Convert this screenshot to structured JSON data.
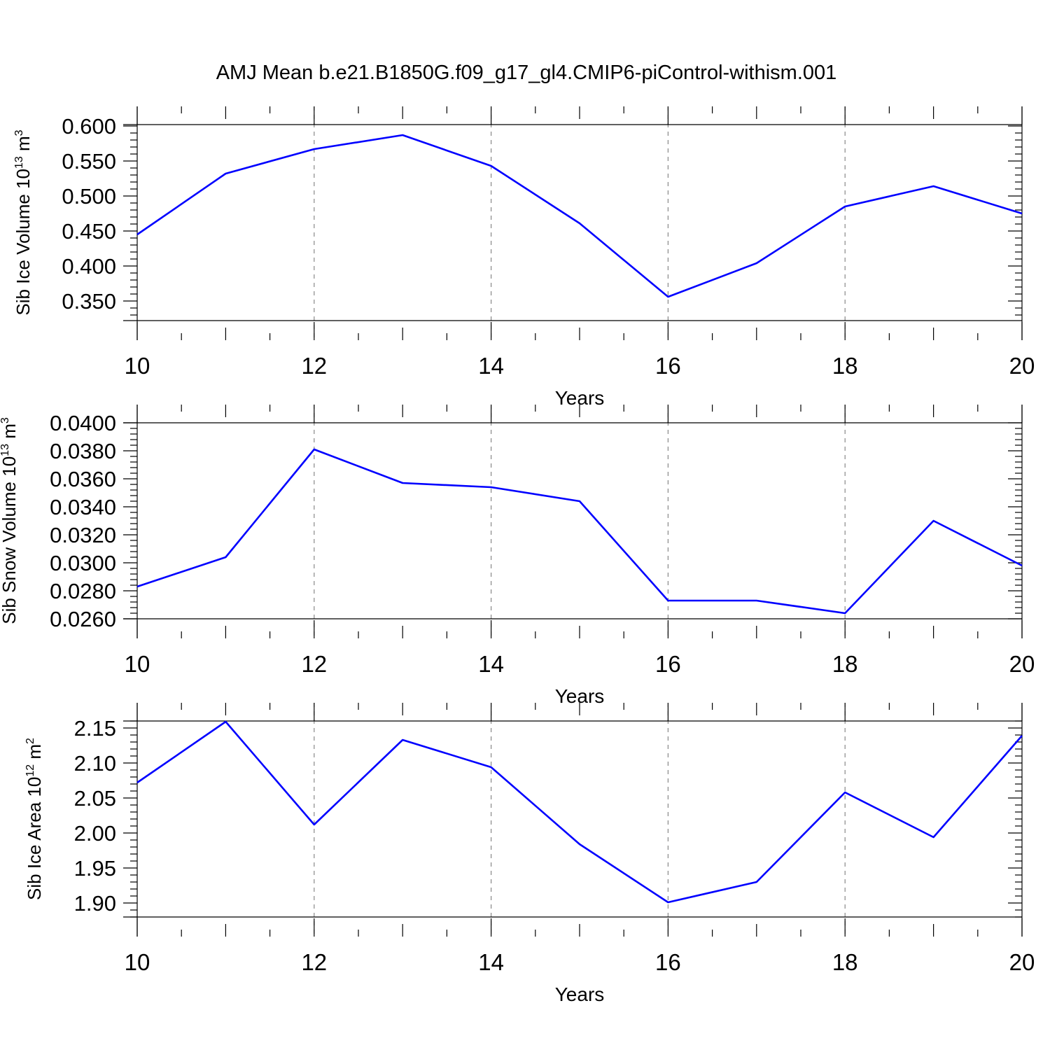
{
  "figure_title": "AMJ Mean b.e21.B1850G.f09_g17_gl4.CMIP6-piControl-withism.001",
  "colors": {
    "line": "#0000ff",
    "axis": "#000000",
    "grid": "#888888"
  },
  "chart_data": [
    {
      "type": "line",
      "title": "",
      "ylabel": "Sib Ice Volume 10",
      "ylabel_exp": "13",
      "ylabel_unit": " m",
      "ylabel_unit_exp": "3",
      "xlabel": "Years",
      "xlim": [
        10,
        20
      ],
      "ylim": [
        0.322,
        0.602
      ],
      "xticks": [
        10,
        12,
        14,
        16,
        18,
        20
      ],
      "xtick_labels": [
        "10",
        "12",
        "14",
        "16",
        "18",
        "20"
      ],
      "yticks": [
        0.35,
        0.4,
        0.45,
        0.5,
        0.55,
        0.6
      ],
      "ytick_labels": [
        "0.350",
        "0.400",
        "0.450",
        "0.500",
        "0.550",
        "0.600"
      ],
      "grid": "x-dashed",
      "series": [
        {
          "x": [
            10,
            11,
            12,
            13,
            14,
            15,
            16,
            17,
            18,
            19,
            20
          ],
          "values": [
            0.445,
            0.532,
            0.567,
            0.587,
            0.543,
            0.461,
            0.356,
            0.404,
            0.485,
            0.514,
            0.475
          ]
        }
      ]
    },
    {
      "type": "line",
      "title": "",
      "ylabel": "Sib Snow Volume 10",
      "ylabel_exp": "13",
      "ylabel_unit": " m",
      "ylabel_unit_exp": "3",
      "xlabel": "Years",
      "xlim": [
        10,
        20
      ],
      "ylim": [
        0.026,
        0.04
      ],
      "xticks": [
        10,
        12,
        14,
        16,
        18,
        20
      ],
      "xtick_labels": [
        "10",
        "12",
        "14",
        "16",
        "18",
        "20"
      ],
      "yticks": [
        0.026,
        0.028,
        0.03,
        0.032,
        0.034,
        0.036,
        0.038,
        0.04
      ],
      "ytick_labels": [
        "0.0260",
        "0.0280",
        "0.0300",
        "0.0320",
        "0.0340",
        "0.0360",
        "0.0380",
        "0.0400"
      ],
      "grid": "x-dashed",
      "series": [
        {
          "x": [
            10,
            11,
            12,
            13,
            14,
            15,
            16,
            17,
            18,
            19,
            20
          ],
          "values": [
            0.0283,
            0.0304,
            0.0381,
            0.0357,
            0.0354,
            0.0344,
            0.0273,
            0.0273,
            0.0264,
            0.033,
            0.0298
          ]
        }
      ]
    },
    {
      "type": "line",
      "title": "",
      "ylabel": "Sib Ice Area 10",
      "ylabel_exp": "12",
      "ylabel_unit": " m",
      "ylabel_unit_exp": "2",
      "xlabel": "Years",
      "xlim": [
        10,
        20
      ],
      "ylim": [
        1.88,
        2.16
      ],
      "xticks": [
        10,
        12,
        14,
        16,
        18,
        20
      ],
      "xtick_labels": [
        "10",
        "12",
        "14",
        "16",
        "18",
        "20"
      ],
      "yticks": [
        1.9,
        1.95,
        2.0,
        2.05,
        2.1,
        2.15
      ],
      "ytick_labels": [
        "1.90",
        "1.95",
        "2.00",
        "2.05",
        "2.10",
        "2.15"
      ],
      "grid": "x-dashed",
      "series": [
        {
          "x": [
            10,
            11,
            12,
            13,
            14,
            15,
            16,
            17,
            18,
            19,
            20
          ],
          "values": [
            2.072,
            2.159,
            2.012,
            2.133,
            2.094,
            1.984,
            1.901,
            1.93,
            2.058,
            1.994,
            2.139
          ]
        }
      ]
    }
  ]
}
